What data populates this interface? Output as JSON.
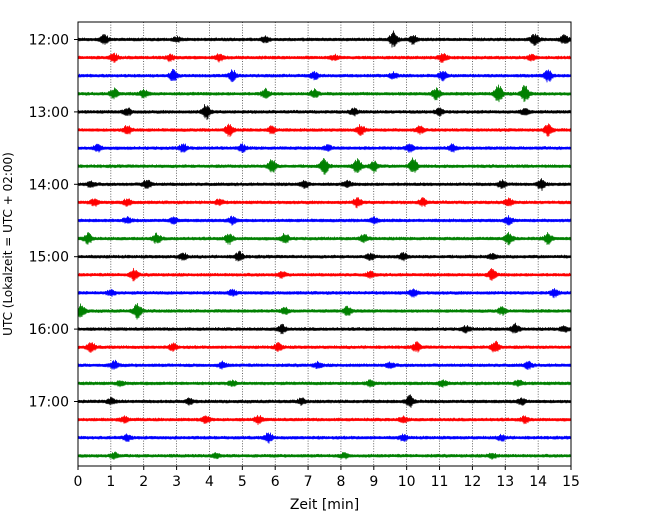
{
  "chart_data": {
    "type": "line",
    "title": "",
    "xlabel": "Zeit  [min]",
    "ylabel": "UTC (Lokalzeit = UTC + 02:00)",
    "xlim": [
      0,
      15
    ],
    "x_ticks": [
      "0",
      "1",
      "2",
      "3",
      "4",
      "5",
      "6",
      "7",
      "8",
      "9",
      "10",
      "11",
      "12",
      "13",
      "14",
      "15"
    ],
    "y_ticks": [
      "12:00",
      "13:00",
      "14:00",
      "15:00",
      "16:00",
      "17:00"
    ],
    "grid_x": true,
    "trace_interval_minutes": 15,
    "trace_colors": [
      "#000000",
      "#ff0000",
      "#0000ff",
      "#008000"
    ],
    "series": [
      {
        "start": "12:00",
        "color": "#000000",
        "events": [
          [
            0.8,
            0.45
          ],
          [
            3.0,
            0.25
          ],
          [
            5.7,
            0.3
          ],
          [
            9.6,
            0.85
          ],
          [
            10.2,
            0.45
          ],
          [
            13.9,
            0.6
          ],
          [
            14.8,
            0.45
          ]
        ]
      },
      {
        "start": "12:15",
        "color": "#ff0000",
        "events": [
          [
            1.1,
            0.4
          ],
          [
            2.8,
            0.3
          ],
          [
            4.3,
            0.35
          ],
          [
            7.8,
            0.25
          ],
          [
            11.1,
            0.45
          ],
          [
            13.8,
            0.3
          ]
        ]
      },
      {
        "start": "12:30",
        "color": "#0000ff",
        "events": [
          [
            2.9,
            0.6
          ],
          [
            4.7,
            0.55
          ],
          [
            7.2,
            0.35
          ],
          [
            9.6,
            0.3
          ],
          [
            11.1,
            0.5
          ],
          [
            14.3,
            0.6
          ]
        ]
      },
      {
        "start": "12:45",
        "color": "#008000",
        "events": [
          [
            1.1,
            0.55
          ],
          [
            2.0,
            0.4
          ],
          [
            5.7,
            0.5
          ],
          [
            7.2,
            0.45
          ],
          [
            10.9,
            0.6
          ],
          [
            12.8,
            0.9
          ],
          [
            13.6,
            0.85
          ]
        ]
      },
      {
        "start": "13:00",
        "color": "#000000",
        "events": [
          [
            1.5,
            0.4
          ],
          [
            3.9,
            0.8
          ],
          [
            8.4,
            0.35
          ],
          [
            11.0,
            0.35
          ],
          [
            13.6,
            0.3
          ]
        ]
      },
      {
        "start": "13:15",
        "color": "#ff0000",
        "events": [
          [
            1.5,
            0.5
          ],
          [
            4.6,
            0.6
          ],
          [
            5.9,
            0.4
          ],
          [
            8.6,
            0.5
          ],
          [
            10.4,
            0.35
          ],
          [
            14.3,
            0.55
          ]
        ]
      },
      {
        "start": "13:30",
        "color": "#0000ff",
        "events": [
          [
            0.6,
            0.35
          ],
          [
            3.2,
            0.4
          ],
          [
            5.0,
            0.35
          ],
          [
            7.6,
            0.3
          ],
          [
            10.1,
            0.45
          ],
          [
            11.4,
            0.35
          ]
        ]
      },
      {
        "start": "13:45",
        "color": "#008000",
        "events": [
          [
            5.9,
            0.7
          ],
          [
            7.5,
            0.8
          ],
          [
            8.5,
            0.75
          ],
          [
            9.0,
            0.6
          ],
          [
            10.2,
            0.8
          ]
        ]
      },
      {
        "start": "14:00",
        "color": "#000000",
        "events": [
          [
            0.4,
            0.3
          ],
          [
            2.1,
            0.5
          ],
          [
            6.9,
            0.35
          ],
          [
            8.2,
            0.3
          ],
          [
            12.9,
            0.4
          ],
          [
            14.1,
            0.55
          ]
        ]
      },
      {
        "start": "14:15",
        "color": "#ff0000",
        "events": [
          [
            0.5,
            0.35
          ],
          [
            1.5,
            0.35
          ],
          [
            4.3,
            0.3
          ],
          [
            8.5,
            0.5
          ],
          [
            10.5,
            0.4
          ],
          [
            13.1,
            0.4
          ]
        ]
      },
      {
        "start": "14:30",
        "color": "#0000ff",
        "events": [
          [
            1.5,
            0.3
          ],
          [
            2.9,
            0.3
          ],
          [
            4.7,
            0.4
          ],
          [
            9.0,
            0.3
          ],
          [
            13.1,
            0.4
          ]
        ]
      },
      {
        "start": "14:45",
        "color": "#008000",
        "events": [
          [
            0.3,
            0.55
          ],
          [
            2.4,
            0.5
          ],
          [
            4.6,
            0.55
          ],
          [
            6.3,
            0.5
          ],
          [
            8.7,
            0.4
          ],
          [
            13.1,
            0.6
          ],
          [
            14.3,
            0.55
          ]
        ]
      },
      {
        "start": "15:00",
        "color": "#000000",
        "events": [
          [
            3.2,
            0.35
          ],
          [
            4.9,
            0.5
          ],
          [
            8.9,
            0.3
          ],
          [
            9.9,
            0.4
          ],
          [
            12.6,
            0.3
          ]
        ]
      },
      {
        "start": "15:15",
        "color": "#ff0000",
        "events": [
          [
            1.7,
            0.55
          ],
          [
            6.2,
            0.3
          ],
          [
            8.9,
            0.3
          ],
          [
            12.6,
            0.55
          ]
        ]
      },
      {
        "start": "15:30",
        "color": "#0000ff",
        "events": [
          [
            1.0,
            0.3
          ],
          [
            4.7,
            0.3
          ],
          [
            10.2,
            0.35
          ],
          [
            14.5,
            0.4
          ]
        ]
      },
      {
        "start": "15:45",
        "color": "#008000",
        "events": [
          [
            0.1,
            0.7
          ],
          [
            1.8,
            0.8
          ],
          [
            6.3,
            0.3
          ],
          [
            8.2,
            0.45
          ],
          [
            12.9,
            0.35
          ]
        ]
      },
      {
        "start": "16:00",
        "color": "#000000",
        "events": [
          [
            6.2,
            0.45
          ],
          [
            11.8,
            0.3
          ],
          [
            13.3,
            0.5
          ],
          [
            14.8,
            0.3
          ]
        ]
      },
      {
        "start": "16:15",
        "color": "#ff0000",
        "events": [
          [
            0.4,
            0.5
          ],
          [
            2.9,
            0.35
          ],
          [
            6.1,
            0.4
          ],
          [
            10.3,
            0.45
          ],
          [
            12.7,
            0.6
          ]
        ]
      },
      {
        "start": "16:30",
        "color": "#0000ff",
        "events": [
          [
            1.1,
            0.45
          ],
          [
            4.4,
            0.3
          ],
          [
            7.3,
            0.3
          ],
          [
            9.5,
            0.3
          ],
          [
            13.7,
            0.35
          ]
        ]
      },
      {
        "start": "16:45",
        "color": "#008000",
        "events": [
          [
            1.3,
            0.3
          ],
          [
            4.7,
            0.25
          ],
          [
            8.9,
            0.3
          ],
          [
            11.1,
            0.3
          ],
          [
            13.4,
            0.3
          ]
        ]
      },
      {
        "start": "17:00",
        "color": "#000000",
        "events": [
          [
            1.0,
            0.3
          ],
          [
            3.4,
            0.3
          ],
          [
            6.8,
            0.3
          ],
          [
            10.1,
            0.6
          ],
          [
            13.5,
            0.3
          ]
        ]
      },
      {
        "start": "17:15",
        "color": "#ff0000",
        "events": [
          [
            1.4,
            0.3
          ],
          [
            3.9,
            0.35
          ],
          [
            5.5,
            0.4
          ],
          [
            9.9,
            0.3
          ],
          [
            13.6,
            0.35
          ]
        ]
      },
      {
        "start": "17:30",
        "color": "#0000ff",
        "events": [
          [
            1.5,
            0.3
          ],
          [
            5.8,
            0.5
          ],
          [
            9.9,
            0.3
          ],
          [
            12.9,
            0.3
          ]
        ]
      },
      {
        "start": "17:45",
        "color": "#008000",
        "events": [
          [
            1.1,
            0.3
          ],
          [
            4.2,
            0.25
          ],
          [
            8.1,
            0.25
          ],
          [
            12.6,
            0.3
          ]
        ]
      }
    ]
  }
}
